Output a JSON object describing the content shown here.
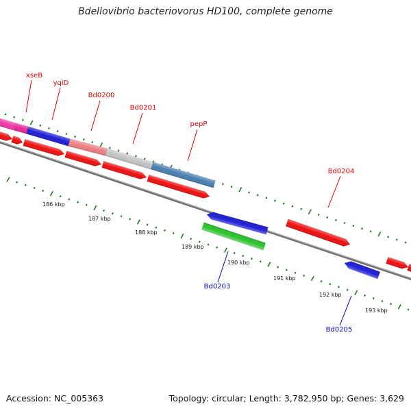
{
  "title": "Bdellovibrio bacteriovorus HD100, complete genome",
  "footer": {
    "accession": "Accession: NC_005363",
    "summary": "Topology: circular; Length: 3,782,950 bp; Genes: 3,629"
  },
  "colors": {
    "forward_label": "#dd0000",
    "reverse_label": "#0000cc",
    "backbone": "#808080",
    "tick": "#1a7a1a"
  },
  "genes": [
    {
      "name": "xseB",
      "strand": "forward",
      "color": "#e8289a"
    },
    {
      "name": "yqiD",
      "strand": "forward",
      "color": "#1f1fd6"
    },
    {
      "name": "Bd0200",
      "strand": "forward",
      "color": "#ec8080"
    },
    {
      "name": "Bd0201",
      "strand": "forward",
      "color": "#c4c4c4"
    },
    {
      "name": "pepP",
      "strand": "forward",
      "color": "#4a7fb0"
    },
    {
      "name": "Bd0204",
      "strand": "forward",
      "color": "#ee1111"
    },
    {
      "name": "Bd0203",
      "strand": "reverse",
      "color": "#2cc42c"
    },
    {
      "name": "Bd0205",
      "strand": "reverse",
      "color": "#1f1fd6"
    }
  ],
  "scale_labels": [
    "186 kbp",
    "187 kbp",
    "188 kbp",
    "189 kbp",
    "190 kbp",
    "191 kbp",
    "192 kbp",
    "193 kbp"
  ]
}
